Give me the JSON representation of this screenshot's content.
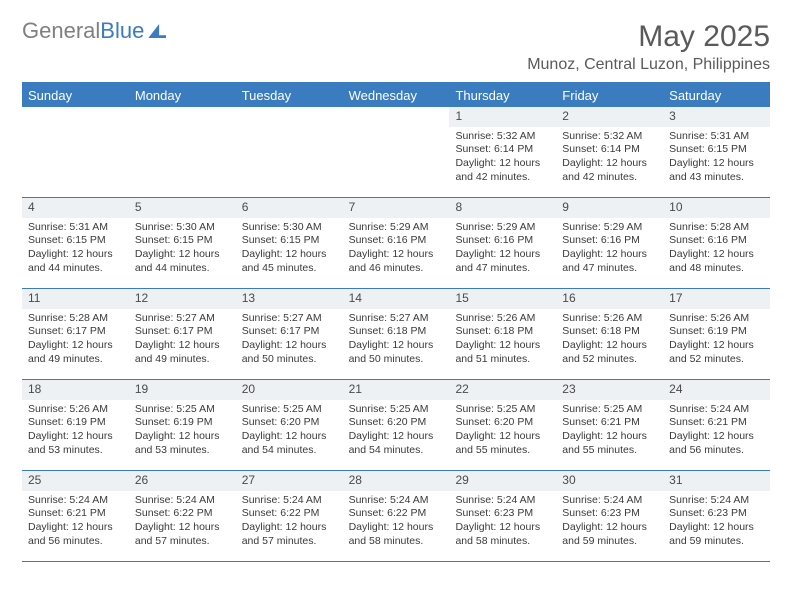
{
  "logo": {
    "part1": "General",
    "part2": "Blue"
  },
  "title": "May 2025",
  "location": "Munoz, Central Luzon, Philippines",
  "colors": {
    "accent": "#3b7bbf",
    "header_bg": "#3b7bbf",
    "header_text": "#ffffff",
    "daynum_bg": "#eef1f3",
    "text": "#3a3a3a",
    "title_text": "#5a5a5a",
    "logo_gray": "#808080"
  },
  "dayheaders": [
    "Sunday",
    "Monday",
    "Tuesday",
    "Wednesday",
    "Thursday",
    "Friday",
    "Saturday"
  ],
  "weeks": [
    [
      null,
      null,
      null,
      null,
      {
        "n": "1",
        "sr": "Sunrise: 5:32 AM",
        "ss": "Sunset: 6:14 PM",
        "d1": "Daylight: 12 hours",
        "d2": "and 42 minutes."
      },
      {
        "n": "2",
        "sr": "Sunrise: 5:32 AM",
        "ss": "Sunset: 6:14 PM",
        "d1": "Daylight: 12 hours",
        "d2": "and 42 minutes."
      },
      {
        "n": "3",
        "sr": "Sunrise: 5:31 AM",
        "ss": "Sunset: 6:15 PM",
        "d1": "Daylight: 12 hours",
        "d2": "and 43 minutes."
      }
    ],
    [
      {
        "n": "4",
        "sr": "Sunrise: 5:31 AM",
        "ss": "Sunset: 6:15 PM",
        "d1": "Daylight: 12 hours",
        "d2": "and 44 minutes."
      },
      {
        "n": "5",
        "sr": "Sunrise: 5:30 AM",
        "ss": "Sunset: 6:15 PM",
        "d1": "Daylight: 12 hours",
        "d2": "and 44 minutes."
      },
      {
        "n": "6",
        "sr": "Sunrise: 5:30 AM",
        "ss": "Sunset: 6:15 PM",
        "d1": "Daylight: 12 hours",
        "d2": "and 45 minutes."
      },
      {
        "n": "7",
        "sr": "Sunrise: 5:29 AM",
        "ss": "Sunset: 6:16 PM",
        "d1": "Daylight: 12 hours",
        "d2": "and 46 minutes."
      },
      {
        "n": "8",
        "sr": "Sunrise: 5:29 AM",
        "ss": "Sunset: 6:16 PM",
        "d1": "Daylight: 12 hours",
        "d2": "and 47 minutes."
      },
      {
        "n": "9",
        "sr": "Sunrise: 5:29 AM",
        "ss": "Sunset: 6:16 PM",
        "d1": "Daylight: 12 hours",
        "d2": "and 47 minutes."
      },
      {
        "n": "10",
        "sr": "Sunrise: 5:28 AM",
        "ss": "Sunset: 6:16 PM",
        "d1": "Daylight: 12 hours",
        "d2": "and 48 minutes."
      }
    ],
    [
      {
        "n": "11",
        "sr": "Sunrise: 5:28 AM",
        "ss": "Sunset: 6:17 PM",
        "d1": "Daylight: 12 hours",
        "d2": "and 49 minutes."
      },
      {
        "n": "12",
        "sr": "Sunrise: 5:27 AM",
        "ss": "Sunset: 6:17 PM",
        "d1": "Daylight: 12 hours",
        "d2": "and 49 minutes."
      },
      {
        "n": "13",
        "sr": "Sunrise: 5:27 AM",
        "ss": "Sunset: 6:17 PM",
        "d1": "Daylight: 12 hours",
        "d2": "and 50 minutes."
      },
      {
        "n": "14",
        "sr": "Sunrise: 5:27 AM",
        "ss": "Sunset: 6:18 PM",
        "d1": "Daylight: 12 hours",
        "d2": "and 50 minutes."
      },
      {
        "n": "15",
        "sr": "Sunrise: 5:26 AM",
        "ss": "Sunset: 6:18 PM",
        "d1": "Daylight: 12 hours",
        "d2": "and 51 minutes."
      },
      {
        "n": "16",
        "sr": "Sunrise: 5:26 AM",
        "ss": "Sunset: 6:18 PM",
        "d1": "Daylight: 12 hours",
        "d2": "and 52 minutes."
      },
      {
        "n": "17",
        "sr": "Sunrise: 5:26 AM",
        "ss": "Sunset: 6:19 PM",
        "d1": "Daylight: 12 hours",
        "d2": "and 52 minutes."
      }
    ],
    [
      {
        "n": "18",
        "sr": "Sunrise: 5:26 AM",
        "ss": "Sunset: 6:19 PM",
        "d1": "Daylight: 12 hours",
        "d2": "and 53 minutes."
      },
      {
        "n": "19",
        "sr": "Sunrise: 5:25 AM",
        "ss": "Sunset: 6:19 PM",
        "d1": "Daylight: 12 hours",
        "d2": "and 53 minutes."
      },
      {
        "n": "20",
        "sr": "Sunrise: 5:25 AM",
        "ss": "Sunset: 6:20 PM",
        "d1": "Daylight: 12 hours",
        "d2": "and 54 minutes."
      },
      {
        "n": "21",
        "sr": "Sunrise: 5:25 AM",
        "ss": "Sunset: 6:20 PM",
        "d1": "Daylight: 12 hours",
        "d2": "and 54 minutes."
      },
      {
        "n": "22",
        "sr": "Sunrise: 5:25 AM",
        "ss": "Sunset: 6:20 PM",
        "d1": "Daylight: 12 hours",
        "d2": "and 55 minutes."
      },
      {
        "n": "23",
        "sr": "Sunrise: 5:25 AM",
        "ss": "Sunset: 6:21 PM",
        "d1": "Daylight: 12 hours",
        "d2": "and 55 minutes."
      },
      {
        "n": "24",
        "sr": "Sunrise: 5:24 AM",
        "ss": "Sunset: 6:21 PM",
        "d1": "Daylight: 12 hours",
        "d2": "and 56 minutes."
      }
    ],
    [
      {
        "n": "25",
        "sr": "Sunrise: 5:24 AM",
        "ss": "Sunset: 6:21 PM",
        "d1": "Daylight: 12 hours",
        "d2": "and 56 minutes."
      },
      {
        "n": "26",
        "sr": "Sunrise: 5:24 AM",
        "ss": "Sunset: 6:22 PM",
        "d1": "Daylight: 12 hours",
        "d2": "and 57 minutes."
      },
      {
        "n": "27",
        "sr": "Sunrise: 5:24 AM",
        "ss": "Sunset: 6:22 PM",
        "d1": "Daylight: 12 hours",
        "d2": "and 57 minutes."
      },
      {
        "n": "28",
        "sr": "Sunrise: 5:24 AM",
        "ss": "Sunset: 6:22 PM",
        "d1": "Daylight: 12 hours",
        "d2": "and 58 minutes."
      },
      {
        "n": "29",
        "sr": "Sunrise: 5:24 AM",
        "ss": "Sunset: 6:23 PM",
        "d1": "Daylight: 12 hours",
        "d2": "and 58 minutes."
      },
      {
        "n": "30",
        "sr": "Sunrise: 5:24 AM",
        "ss": "Sunset: 6:23 PM",
        "d1": "Daylight: 12 hours",
        "d2": "and 59 minutes."
      },
      {
        "n": "31",
        "sr": "Sunrise: 5:24 AM",
        "ss": "Sunset: 6:23 PM",
        "d1": "Daylight: 12 hours",
        "d2": "and 59 minutes."
      }
    ]
  ]
}
